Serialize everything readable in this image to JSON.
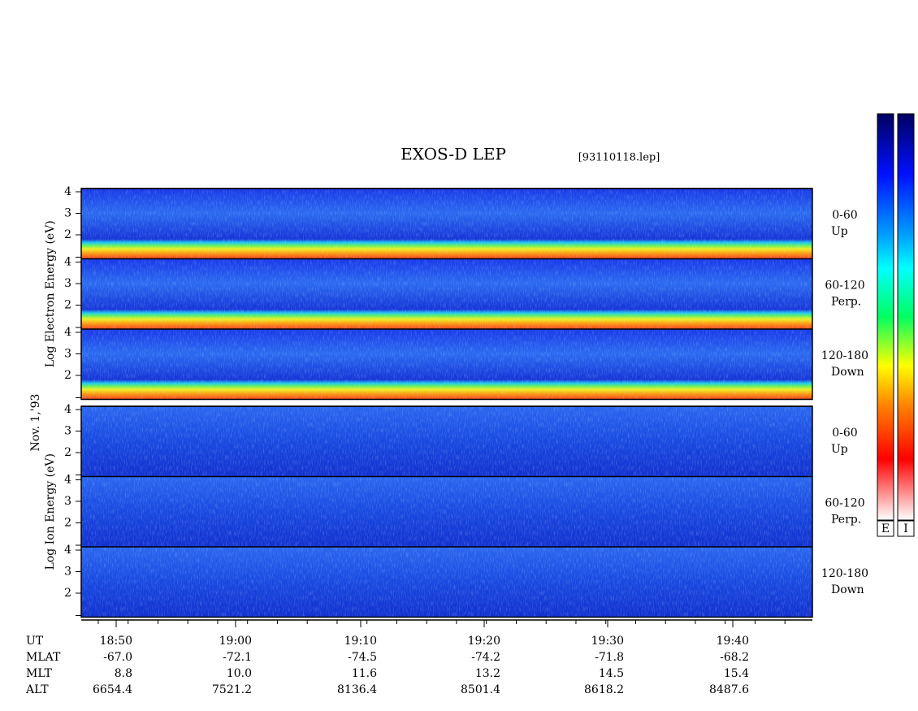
{
  "title": "EXOS-D LEP",
  "file": "[93110118.lep]",
  "date": "Nov. 1,'93",
  "electron": {
    "axis_label": "Log  Electron  Energy (eV)",
    "panels": [
      {
        "angle": "0-60",
        "direction": "Up"
      },
      {
        "angle": "60-120",
        "direction": "Perp."
      },
      {
        "angle": "120-180",
        "direction": "Down"
      }
    ]
  },
  "ion": {
    "axis_label": "Log  Ion  Energy (eV)",
    "panels": [
      {
        "angle": "0-60",
        "direction": "Up"
      },
      {
        "angle": "60-120",
        "direction": "Perp."
      },
      {
        "angle": "120-180",
        "direction": "Down"
      }
    ]
  },
  "energy_ticks": [
    "4",
    "3",
    "2"
  ],
  "row_labels": [
    "UT",
    "MLAT",
    "MLT",
    "ALT"
  ],
  "times": [
    "18:50",
    "19:00",
    "19:10",
    "19:20",
    "19:30",
    "19:40"
  ],
  "mlat": [
    "-67.0",
    "-72.1",
    "-74.5",
    "-74.2",
    "-71.8",
    "-68.2"
  ],
  "mlt": [
    "8.8",
    "10.0",
    "11.6",
    "13.2",
    "14.5",
    "15.4"
  ],
  "alt": [
    "6654.4",
    "7521.2",
    "8136.4",
    "8501.4",
    "8618.2",
    "8487.6"
  ],
  "colorbar_labels": [
    "E",
    "I"
  ]
}
